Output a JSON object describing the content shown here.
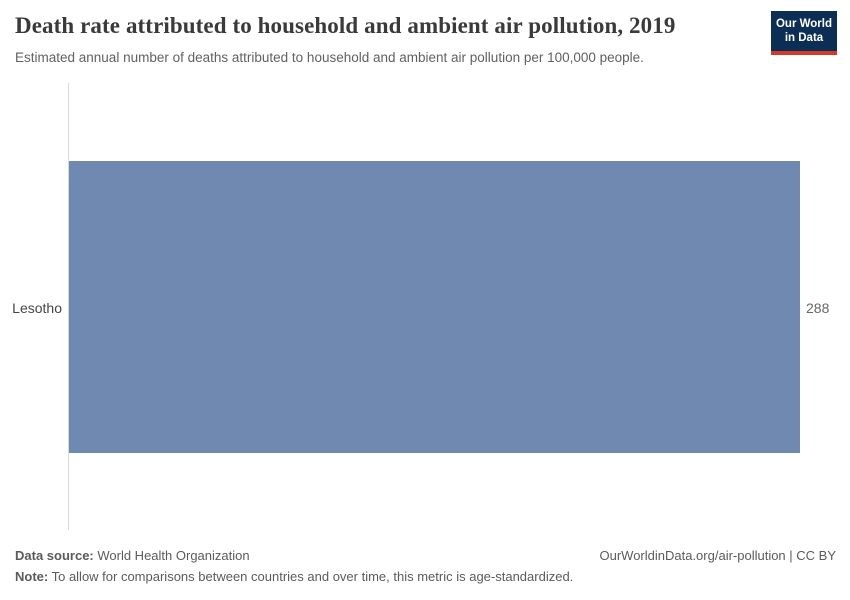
{
  "header": {
    "title": "Death rate attributed to household and ambient air pollution, 2019",
    "subtitle": "Estimated annual number of deaths attributed to household and ambient air pollution per 100,000 people.",
    "logo": {
      "line1": "Our World",
      "line2": "in Data",
      "background_color": "#0d2e54",
      "accent_color": "#d4392a"
    }
  },
  "chart_data": {
    "type": "bar",
    "orientation": "horizontal",
    "title": "Death rate attributed to household and ambient air pollution, 2019",
    "categories": [
      "Lesotho"
    ],
    "values": [
      288
    ],
    "value_labels": [
      "288"
    ],
    "xlabel": "",
    "ylabel": "",
    "xlim": [
      0,
      288
    ],
    "grid": false,
    "legend": "none",
    "bar_color": "#7089b0",
    "axis_line_color": "#dadada"
  },
  "footer": {
    "data_source_label": "Data source:",
    "data_source_value": " World Health Organization",
    "note_label": "Note:",
    "note_value": " To allow for comparisons between countries and over time, this metric is age-standardized.",
    "link": "OurWorldinData.org/air-pollution | CC BY"
  }
}
